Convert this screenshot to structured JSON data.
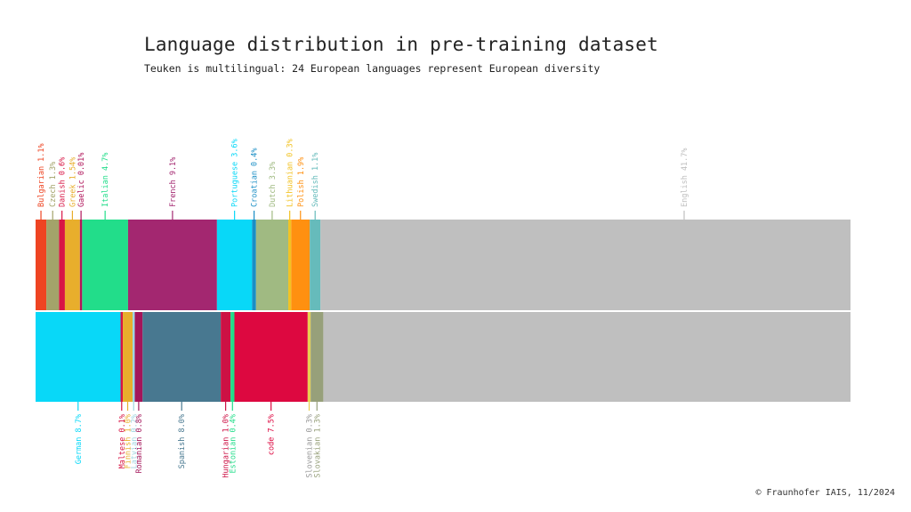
{
  "header": {
    "title": "Language distribution in pre-training dataset",
    "subtitle": "Teuken is multilingual: 24 European languages represent European diversity"
  },
  "footer": {
    "copyright": "© Fraunhofer IAIS, 11/2024"
  },
  "chart_data": {
    "type": "bar",
    "stacked": true,
    "orientation": "horizontal",
    "units": "percent",
    "rows": [
      {
        "segments": [
          {
            "label": "Bulgarian 1.1%",
            "value": 1.1,
            "color": "#ee4422"
          },
          {
            "label": "Czech 1.3%",
            "value": 1.3,
            "color": "#a3a36a"
          },
          {
            "label": "Danish 0.6%",
            "value": 0.6,
            "color": "#d81545"
          },
          {
            "label": "Greek 1.54%",
            "value": 1.54,
            "color": "#e8ae2c"
          },
          {
            "label": "Gaelic 0.01%",
            "value": 0.01,
            "color": "#b0155a"
          },
          {
            "label": "Italian 4.7%",
            "value": 4.7,
            "color": "#22dd8a"
          },
          {
            "label": "French 9.1%",
            "value": 9.1,
            "color": "#a32770"
          },
          {
            "label": "Portuguese 3.6%",
            "value": 3.6,
            "color": "#08d8f8"
          },
          {
            "label": "Croatian 0.4%",
            "value": 0.4,
            "color": "#1a8ec5"
          },
          {
            "label": "Dutch 3.3%",
            "value": 3.3,
            "color": "#a0ba82"
          },
          {
            "label": "Lithuanian 0.3%",
            "value": 0.3,
            "color": "#f2c222"
          },
          {
            "label": "Polish 1.9%",
            "value": 1.9,
            "color": "#ff9010"
          },
          {
            "label": "Swedish 1.1%",
            "value": 1.1,
            "color": "#66bbbb"
          },
          {
            "label": "English 41.7%",
            "value": 41.7,
            "color": "#bfbfbf"
          }
        ]
      },
      {
        "segments": [
          {
            "label": "German 8.7%",
            "value": 8.7,
            "color": "#08d8f8"
          },
          {
            "label": "Maltese 0.1%",
            "value": 0.1,
            "color": "#d81545"
          },
          {
            "label": "Finnish 1.0%",
            "value": 1.0,
            "color": "#e8ae2c"
          },
          {
            "label": "Latvian 0.2%",
            "value": 0.2,
            "color": "#9fd6e0"
          },
          {
            "label": "Romanian 0.8%",
            "value": 0.8,
            "color": "#a3155a"
          },
          {
            "label": "Spanish 8.0%",
            "value": 8.0,
            "color": "#487890"
          },
          {
            "label": "Hungarian 1.0%",
            "value": 1.0,
            "color": "#cc1144"
          },
          {
            "label": "Estonian 0.4%",
            "value": 0.4,
            "color": "#22dd8a"
          },
          {
            "label": "code 7.5%",
            "value": 7.5,
            "color": "#dd0840"
          },
          {
            "label": "Slovenian 0.3%",
            "value": 0.3,
            "color": "#e8d050"
          },
          {
            "label": "Slovakian 1.3%",
            "value": 1.3,
            "color": "#97a07a"
          },
          {
            "label": "English 41.7%",
            "value": 41.7,
            "color": "#bfbfbf",
            "labeled": false
          }
        ]
      }
    ]
  }
}
